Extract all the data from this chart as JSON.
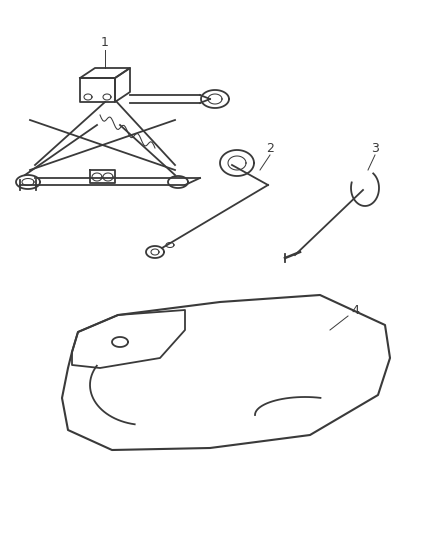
{
  "background_color": "#ffffff",
  "line_color": "#3a3a3a",
  "label_color": "#3a3a3a",
  "lw_main": 1.3,
  "lw_thin": 0.75,
  "lw_label": 0.7
}
